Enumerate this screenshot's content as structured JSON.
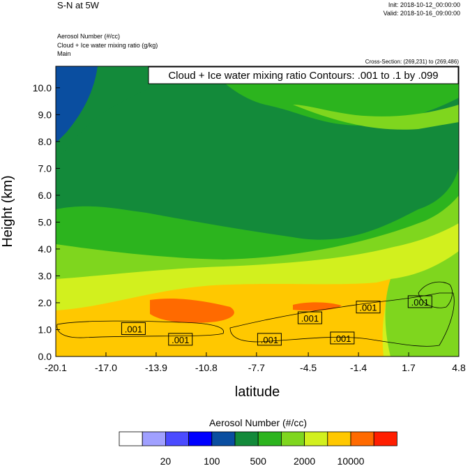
{
  "header": {
    "title": "S-N at 5W",
    "init": "Init: 2018-10-12_00:00:00",
    "valid": "Valid: 2018-10-16_09:00:00",
    "fields": [
      "Aerosol Number   (#/cc)",
      "Cloud + Ice water mixing ratio   (g/kg)",
      "Main"
    ],
    "cross_section": "Cross-Section: (269,231) to (269,486)"
  },
  "colors": {
    "levels": [
      "#ffffff",
      "#a0a0ff",
      "#4b4bff",
      "#0000ff",
      "#0a4ea0",
      "#138a3a",
      "#2cb41e",
      "#7fd61e",
      "#d2f01e",
      "#ffc800",
      "#ff6a00",
      "#ff1e00"
    ]
  },
  "colorbar": {
    "title": "Aerosol Number  (#/cc)",
    "labels": [
      "20",
      "100",
      "500",
      "2000",
      "10000"
    ]
  },
  "chart_data": {
    "type": "heatmap",
    "title": "S-N at 5W",
    "xlabel": "latitude",
    "ylabel": "Height (km)",
    "x_ticks": [
      "-20.1",
      "-17.0",
      "-13.9",
      "-10.8",
      "-7.7",
      "-4.5",
      "-1.4",
      "1.7",
      "4.8"
    ],
    "y_ticks": [
      "0.0",
      "1.0",
      "2.0",
      "3.0",
      "4.0",
      "5.0",
      "6.0",
      "7.0",
      "8.0",
      "9.0",
      "10.0"
    ],
    "xlim": [
      -20.1,
      4.8
    ],
    "ylim": [
      0,
      10.8
    ],
    "contour_info": "Cloud + Ice water mixing ratio Contours: .001 to .1 by .099",
    "contour_labels": [
      {
        "text": ".001",
        "lat": -15.3,
        "z": 1.0
      },
      {
        "text": ".001",
        "lat": -12.4,
        "z": 0.6
      },
      {
        "text": ".001",
        "lat": -6.9,
        "z": 0.6
      },
      {
        "text": ".001",
        "lat": -4.4,
        "z": 1.4
      },
      {
        "text": ".001",
        "lat": -2.4,
        "z": 0.65
      },
      {
        "text": ".001",
        "lat": -0.8,
        "z": 1.8
      },
      {
        "text": ".001",
        "lat": 2.4,
        "z": 2.0
      }
    ],
    "aerosol_number_per_cc": {
      "note": "approximate dominant bins with height",
      "levels": [
        "20",
        "100",
        "500",
        "2000",
        "10000"
      ]
    }
  }
}
